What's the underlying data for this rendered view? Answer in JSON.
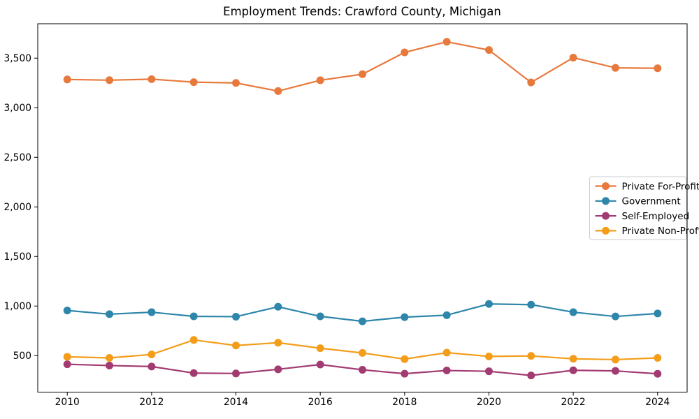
{
  "chart_data": {
    "type": "line",
    "title": "Employment Trends: Crawford County, Michigan",
    "xlabel": "",
    "ylabel": "",
    "x": [
      2010,
      2011,
      2012,
      2013,
      2014,
      2015,
      2016,
      2017,
      2018,
      2019,
      2020,
      2021,
      2022,
      2023,
      2024
    ],
    "series": [
      {
        "name": "Private For-Profit",
        "color": "#E8793D",
        "values": [
          3285,
          3278,
          3288,
          3258,
          3250,
          3168,
          3277,
          3338,
          3558,
          3665,
          3582,
          3255,
          3505,
          3402,
          3398
        ]
      },
      {
        "name": "Government",
        "color": "#2E86AB",
        "values": [
          955,
          918,
          938,
          896,
          893,
          993,
          896,
          846,
          888,
          908,
          1021,
          1014,
          938,
          895,
          925
        ]
      },
      {
        "name": "Self-Employed",
        "color": "#A23B72",
        "values": [
          413,
          400,
          390,
          324,
          320,
          362,
          410,
          357,
          318,
          350,
          342,
          300,
          352,
          346,
          317
        ]
      },
      {
        "name": "Private Non-Profit",
        "color": "#F39D1A",
        "values": [
          488,
          477,
          512,
          658,
          602,
          630,
          575,
          527,
          465,
          530,
          492,
          497,
          468,
          460,
          477
        ]
      }
    ],
    "xticks": [
      2010,
      2012,
      2014,
      2016,
      2018,
      2020,
      2022,
      2024
    ],
    "yticks": [
      500,
      1000,
      1500,
      2000,
      2500,
      3000,
      3500
    ],
    "xlim": [
      2009.3,
      2024.7
    ],
    "ylim": [
      132,
      3847
    ],
    "grid": false,
    "legend_position": "center-right",
    "frame_color": "#000000",
    "legend_border_color": "#CCCCCC"
  }
}
